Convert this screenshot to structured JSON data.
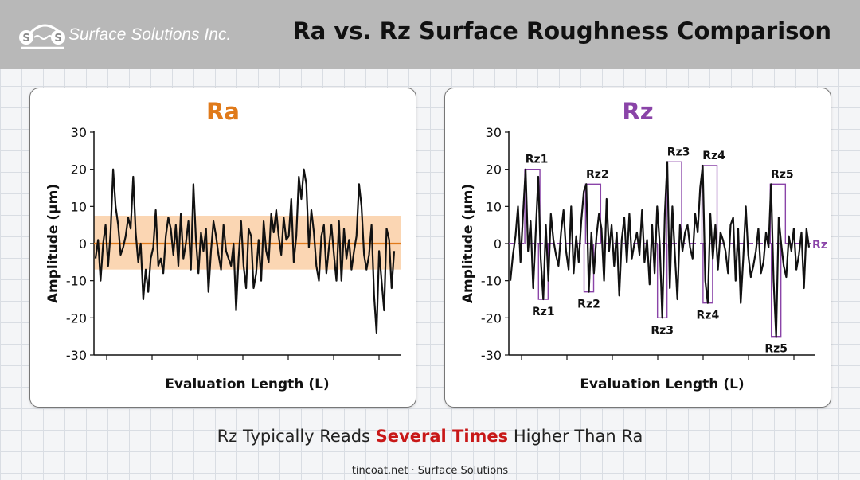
{
  "header": {
    "company_name": "Surface Solutions Inc.",
    "logo_letters": [
      "S",
      "S"
    ],
    "title": "Ra vs. Rz Surface Roughness Comparison"
  },
  "colors": {
    "ra_accent": "#e07a1a",
    "ra_band": "#f9c89a",
    "rz_accent": "#8a44a8",
    "highlight": "#c81818",
    "profile": "#111111"
  },
  "chart_data": [
    {
      "type": "line",
      "title": "Ra",
      "xlabel": "Evaluation Length (L)",
      "ylabel": "Amplitude (µm)",
      "ylim": [
        -30,
        30
      ],
      "yticks": [
        30,
        20,
        10,
        0,
        -10,
        -20,
        -30
      ],
      "x_tick_count": 7,
      "grid": false,
      "mean_line": 0,
      "band": [
        -7,
        7.5
      ],
      "series": [
        {
          "values": [
            -4,
            1,
            -10,
            0,
            5,
            -6,
            3,
            20,
            10,
            5,
            -3,
            -1,
            2,
            7,
            4,
            18,
            3,
            -5,
            0,
            -15,
            -7,
            -13,
            -4,
            -1,
            9,
            -6,
            -4,
            -8,
            2,
            7,
            4,
            -3,
            5,
            -6,
            8,
            -4,
            0,
            6,
            -7,
            16,
            1,
            -8,
            3,
            -2,
            4,
            -13,
            -2,
            6,
            2,
            -3,
            -7,
            5,
            -2,
            -4,
            -6,
            0,
            -18,
            -4,
            6,
            -6,
            -12,
            4,
            2,
            -12,
            -8,
            1,
            -10,
            6,
            -2,
            -5,
            8,
            3,
            9,
            2,
            -3,
            7,
            1,
            2,
            12,
            -5,
            2,
            18,
            12,
            20,
            16,
            -1,
            9,
            3,
            -6,
            -10,
            2,
            5,
            -8,
            -1,
            5,
            -3,
            -10,
            6,
            -10,
            4,
            -4,
            1,
            -7,
            -2,
            2,
            16,
            10,
            -3,
            -7,
            -3,
            5,
            -14,
            -24,
            -2,
            -10,
            -18,
            4,
            1,
            -12,
            -2
          ]
        }
      ]
    },
    {
      "type": "line",
      "title": "Rz",
      "xlabel": "Evaluation Length (L)",
      "ylabel": "Amplitude (µm)",
      "ylim": [
        -30,
        30
      ],
      "yticks": [
        30,
        20,
        10,
        0,
        -10,
        -20,
        -30
      ],
      "x_tick_count": 7,
      "grid": false,
      "mean_line": 0,
      "mean_label": "Rz",
      "series": [
        {
          "values": [
            -10,
            -3,
            2,
            10,
            -5,
            8,
            20,
            -2,
            6,
            -12,
            3,
            18,
            -4,
            -15,
            5,
            -10,
            8,
            1,
            -3,
            -6,
            3,
            9,
            -2,
            -7,
            10,
            -8,
            2,
            -5,
            6,
            14,
            16,
            -13,
            3,
            -8,
            2,
            8,
            4,
            -10,
            12,
            -2,
            5,
            -6,
            3,
            -14,
            1,
            7,
            -5,
            8,
            -4,
            0,
            3,
            -3,
            9,
            -5,
            1,
            -11,
            5,
            -8,
            10,
            0,
            -20,
            8,
            22,
            -12,
            10,
            -3,
            -15,
            5,
            -2,
            3,
            5,
            -1,
            -4,
            8,
            3,
            15,
            21,
            -10,
            -16,
            8,
            -4,
            5,
            -7,
            3,
            1,
            -2,
            -8,
            5,
            7,
            -10,
            4,
            -16,
            -4,
            10,
            -3,
            -9,
            -6,
            -2,
            4,
            -8,
            -5,
            3,
            -1,
            16,
            -10,
            -25,
            7,
            0,
            -6,
            -9,
            2,
            -2,
            4,
            -7,
            -3,
            3,
            -12,
            4,
            -1
          ]
        }
      ],
      "peak_valley_pairs": [
        {
          "name": "Rz1",
          "peak": 20,
          "valley": -15
        },
        {
          "name": "Rz2",
          "peak": 16,
          "valley": -13
        },
        {
          "name": "Rz3",
          "peak": 22,
          "valley": -20
        },
        {
          "name": "Rz4",
          "peak": 21,
          "valley": -16
        },
        {
          "name": "Rz5",
          "peak": 16,
          "valley": -25
        }
      ]
    }
  ],
  "subtitle": {
    "before": "Rz Typically Reads ",
    "highlight": "Several Times",
    "after": " Higher Than Ra"
  },
  "footer": "tincoat.net · Surface Solutions"
}
